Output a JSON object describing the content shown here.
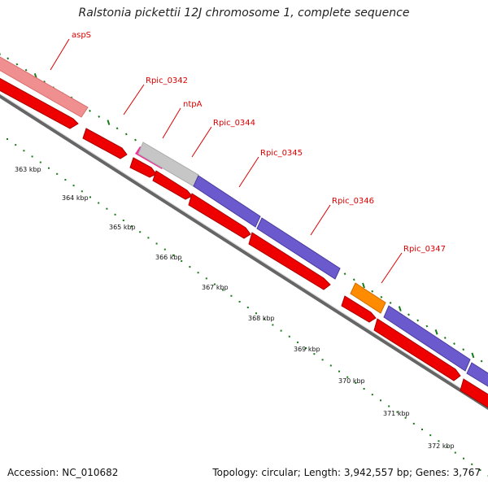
{
  "title": "Ralstonia pickettii 12J chromosome 1, complete sequence",
  "footer": {
    "accession": "Accession: NC_010682",
    "summary": "Topology: circular; Length: 3,942,557 bp; Genes: 3,767"
  },
  "colors": {
    "cds": "#ee0000",
    "trna": "#ee77aa",
    "rrna_light": "#f08f8f",
    "misc": "#bbbbbb",
    "purple": "#6a5acd",
    "orange": "#ff8c00",
    "backbone": "#666666",
    "gc_tick": "#1a7a1a",
    "label": "#dd0000"
  },
  "gene_labels": [
    {
      "name": "aspS"
    },
    {
      "name": "Rpic_0342"
    },
    {
      "name": "ntpA"
    },
    {
      "name": "Rpic_0344"
    },
    {
      "name": "Rpic_0345"
    },
    {
      "name": "Rpic_0346"
    },
    {
      "name": "Rpic_0347"
    }
  ],
  "scale_labels": [
    "363 kbp",
    "364 kbp",
    "365 kbp",
    "366 kbp",
    "367 kbp",
    "368 kbp",
    "369 kbp",
    "370 kbp",
    "371 kbp",
    "372 kbp"
  ]
}
